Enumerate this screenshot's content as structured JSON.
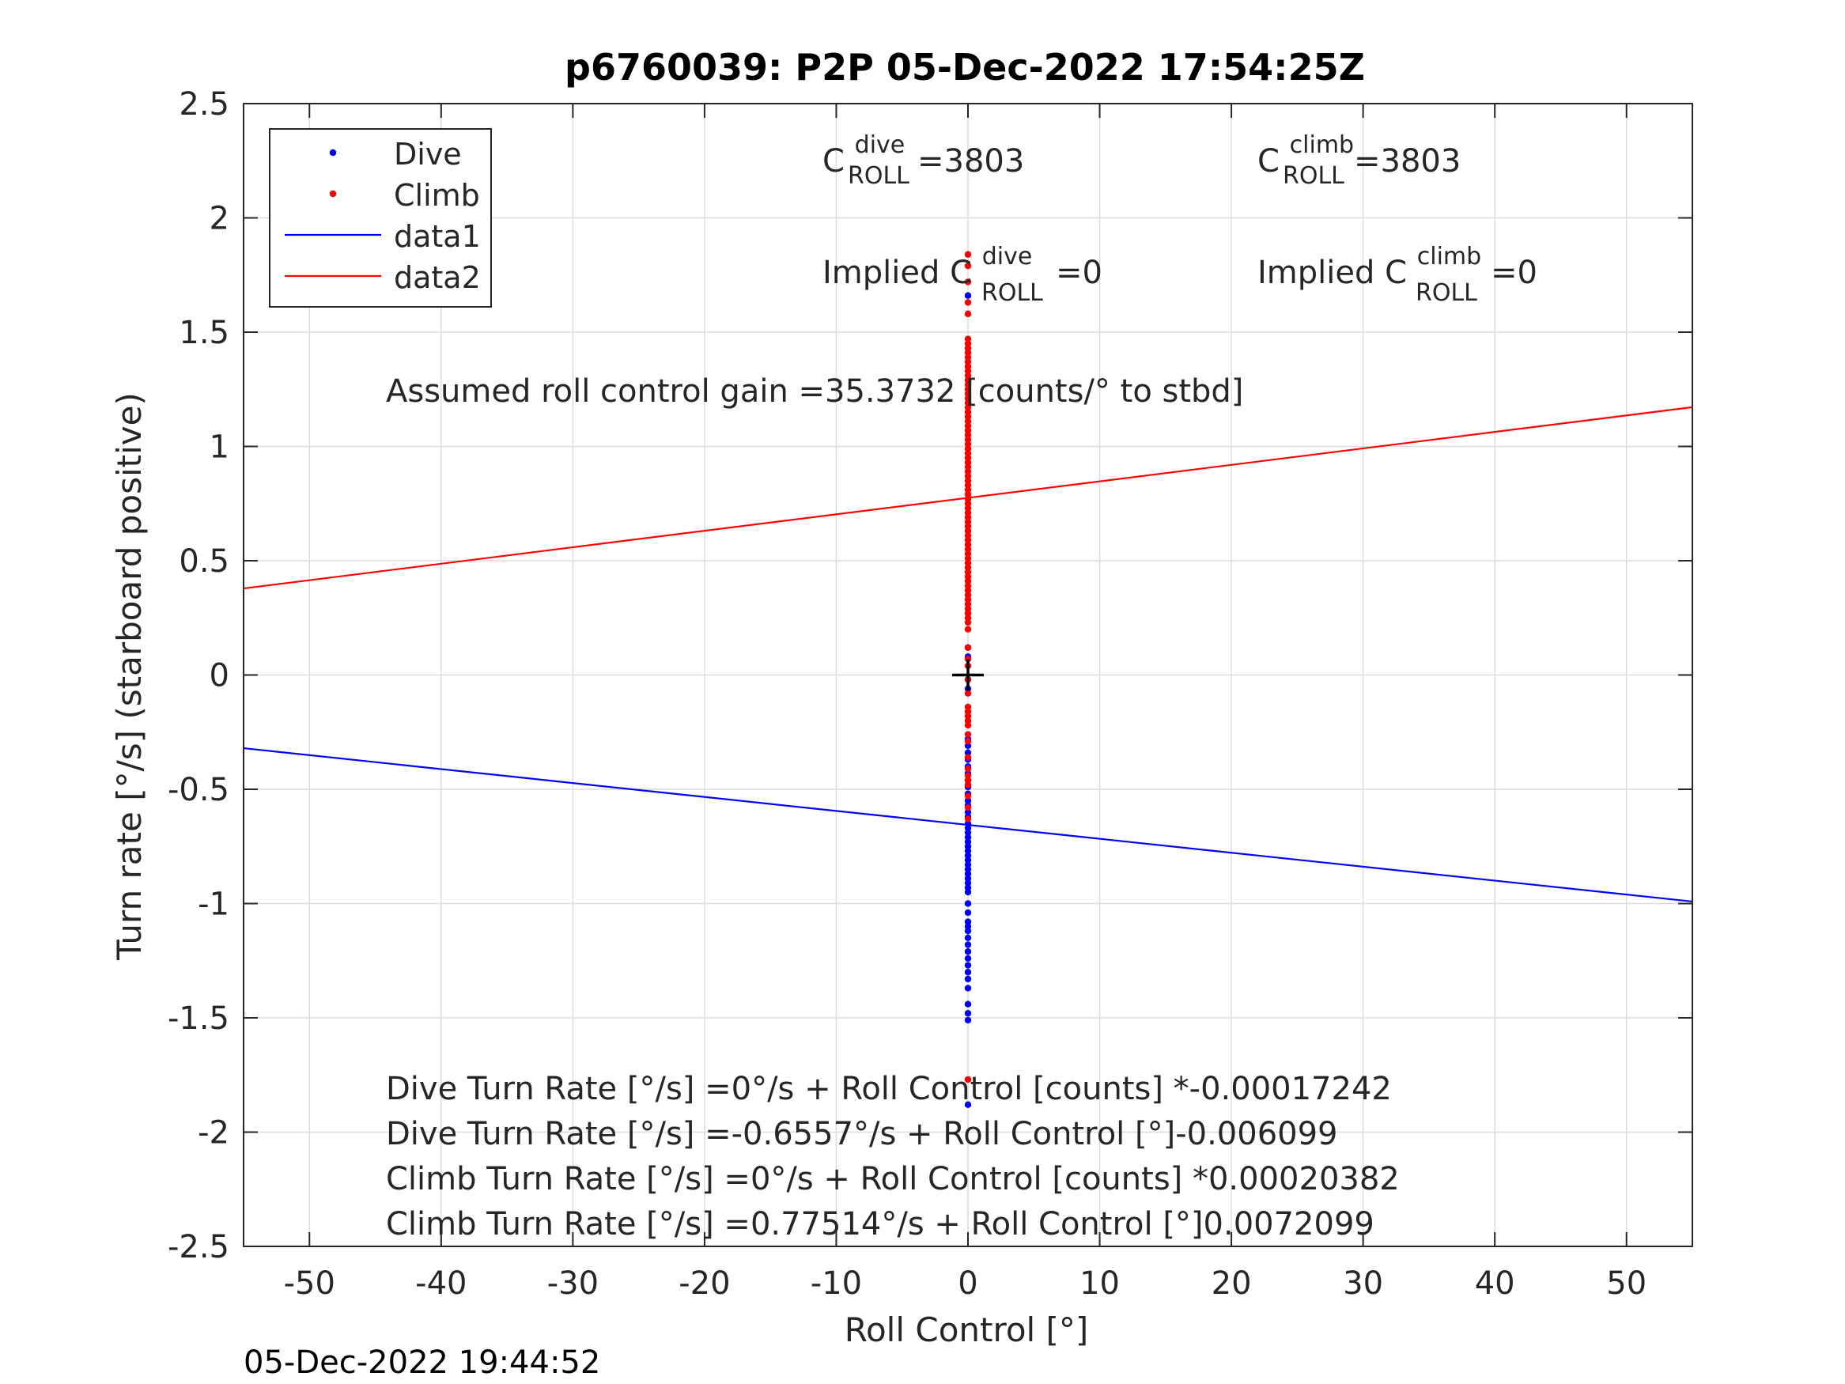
{
  "chart_data": {
    "type": "scatter",
    "title": "p6760039: P2P 05-Dec-2022 17:54:25Z",
    "xlabel": "Roll Control [°]",
    "ylabel": "Turn rate [°/s] (starboard positive)",
    "xlim": [
      -55,
      55
    ],
    "ylim": [
      -2.5,
      2.5
    ],
    "xticks": [
      -50,
      -40,
      -30,
      -20,
      -10,
      0,
      10,
      20,
      30,
      40,
      50
    ],
    "xtick_labels": [
      "-50",
      "-40",
      "-30",
      "-20",
      "-10",
      "0",
      "10",
      "20",
      "30",
      "40",
      "50"
    ],
    "yticks": [
      2.5,
      2,
      1.5,
      1,
      0.5,
      0,
      -0.5,
      -1,
      -1.5,
      -2,
      -2.5
    ],
    "ytick_labels": [
      "2.5",
      "2",
      "1.5",
      "1",
      "0.5",
      "0",
      "-0.5",
      "-1",
      "-1.5",
      "-2",
      "-2.5"
    ],
    "grid": true,
    "legend_placement": "top-left",
    "legend": [
      {
        "label": "Dive",
        "kind": "dot",
        "color": "#0000ff"
      },
      {
        "label": "Climb",
        "kind": "dot",
        "color": "#ff0000"
      },
      {
        "label": "data1",
        "kind": "line",
        "color": "#0000ff"
      },
      {
        "label": "data2",
        "kind": "line",
        "color": "#ff0000"
      }
    ],
    "series": [
      {
        "name": "Dive",
        "kind": "scatter",
        "color": "#0000ff",
        "x": 0,
        "y": [
          1.66,
          0.12,
          0.08,
          -0.02,
          -0.06,
          -0.28,
          -0.31,
          -0.34,
          -0.37,
          -0.4,
          -0.43,
          -0.46,
          -0.49,
          -0.52,
          -0.55,
          -0.57,
          -0.6,
          -0.62,
          -0.65,
          -0.67,
          -0.69,
          -0.71,
          -0.73,
          -0.75,
          -0.77,
          -0.79,
          -0.81,
          -0.83,
          -0.85,
          -0.87,
          -0.89,
          -0.91,
          -0.93,
          -0.95,
          -1.0,
          -1.04,
          -1.08,
          -1.1,
          -1.12,
          -1.15,
          -1.18,
          -1.21,
          -1.24,
          -1.27,
          -1.3,
          -1.33,
          -1.37,
          -1.44,
          -1.48,
          -1.51,
          -1.88
        ]
      },
      {
        "name": "Climb",
        "kind": "scatter",
        "color": "#ff0000",
        "x": 0,
        "y": [
          1.84,
          1.79,
          1.72,
          1.63,
          1.58,
          1.47,
          1.45,
          1.43,
          1.41,
          1.39,
          1.37,
          1.35,
          1.33,
          1.31,
          1.29,
          1.27,
          1.25,
          1.23,
          1.21,
          1.19,
          1.17,
          1.15,
          1.13,
          1.11,
          1.09,
          1.07,
          1.05,
          1.03,
          1.01,
          0.99,
          0.97,
          0.95,
          0.93,
          0.91,
          0.89,
          0.87,
          0.85,
          0.83,
          0.81,
          0.79,
          0.77,
          0.75,
          0.73,
          0.71,
          0.69,
          0.67,
          0.65,
          0.63,
          0.61,
          0.59,
          0.57,
          0.55,
          0.53,
          0.51,
          0.49,
          0.47,
          0.45,
          0.43,
          0.41,
          0.39,
          0.37,
          0.35,
          0.33,
          0.31,
          0.29,
          0.27,
          0.25,
          0.23,
          0.2,
          0.12,
          0.07,
          0.04,
          -0.02,
          -0.08,
          -0.14,
          -0.16,
          -0.18,
          -0.2,
          -0.22,
          -0.26,
          -0.29,
          -0.36,
          -0.41,
          -0.44,
          -0.46,
          -0.48,
          -0.53,
          -0.58,
          -0.63,
          -1.77
        ]
      },
      {
        "name": "data1",
        "kind": "line",
        "color": "#0000ff",
        "intercept": -0.6557,
        "slope": -0.006099
      },
      {
        "name": "data2",
        "kind": "line",
        "color": "#ff0000",
        "intercept": 0.77514,
        "slope": 0.0072099
      }
    ],
    "marker": {
      "x": 0,
      "y": 0,
      "symbol": "+",
      "color": "#000000"
    }
  },
  "annotations": {
    "c_dive_base": "C",
    "c_dive_sup": "dive",
    "c_dive_sub": "ROLL",
    "c_dive_value": " =3803",
    "c_climb_base": "C",
    "c_climb_sup": "climb",
    "c_climb_sub": "ROLL",
    "c_climb_value": " =3803",
    "implied_dive_base": "Implied C",
    "implied_dive_sup": "dive",
    "implied_dive_sub": "ROLL",
    "implied_dive_value": " =0",
    "implied_climb_base": "Implied C",
    "implied_climb_sup": "climb",
    "implied_climb_sub": "ROLL",
    "implied_climb_value": " =0",
    "gain": "Assumed roll control gain =35.3732 [counts/° to stbd]",
    "eq1": "Dive Turn Rate [°/s] =0°/s + Roll Control [counts] *-0.00017242",
    "eq2": "Dive Turn Rate [°/s] =-0.6557°/s + Roll Control [°]-0.006099",
    "eq3": "Climb Turn Rate [°/s] =0°/s + Roll Control [counts] *0.00020382",
    "eq4": "Climb Turn Rate [°/s] =0.77514°/s + Roll Control [°]0.0072099"
  },
  "timestamp": "05-Dec-2022 19:44:52"
}
